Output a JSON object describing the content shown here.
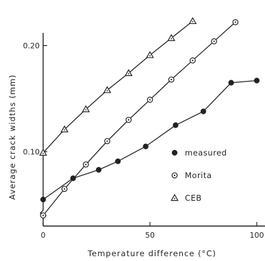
{
  "chart_data": {
    "type": "line",
    "xlabel": "Temperature difference (°C)",
    "ylabel": "Average crack widths (mm)",
    "xlim": [
      0,
      100
    ],
    "ylim": [
      0.03,
      0.23
    ],
    "xticks": [
      "0",
      "50",
      "100"
    ],
    "xtick_values": [
      0,
      50,
      100
    ],
    "yticks": [
      "0.10",
      "0.20"
    ],
    "ytick_values": [
      0.1,
      0.2
    ],
    "grid": false,
    "legend_placement": "right",
    "series": [
      {
        "name": "measured",
        "marker": "filled-circle",
        "x": [
          0,
          14,
          26,
          35,
          48,
          62,
          75,
          88,
          100
        ],
        "y": [
          0.055,
          0.075,
          0.083,
          0.091,
          0.105,
          0.125,
          0.138,
          0.165,
          0.167
        ]
      },
      {
        "name": "Morita",
        "marker": "dotted-circle",
        "x": [
          0,
          10,
          20,
          30,
          40,
          50,
          60,
          70,
          80,
          90
        ],
        "y": [
          0.04,
          0.065,
          0.088,
          0.11,
          0.13,
          0.149,
          0.168,
          0.186,
          0.204,
          0.222
        ]
      },
      {
        "name": "CEB",
        "marker": "triangle",
        "x": [
          0,
          10,
          20,
          30,
          40,
          50,
          60,
          70
        ],
        "y": [
          0.099,
          0.121,
          0.14,
          0.158,
          0.174,
          0.191,
          0.207,
          0.223
        ]
      }
    ]
  }
}
